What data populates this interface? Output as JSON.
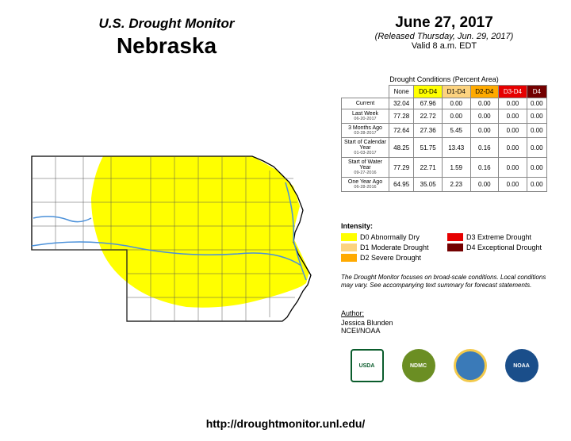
{
  "header": {
    "subtitle": "U.S. Drought Monitor",
    "title": "Nebraska",
    "date": "June 27, 2017",
    "released": "(Released Thursday, Jun. 29, 2017)",
    "valid": "Valid 8 a.m. EDT"
  },
  "table": {
    "caption": "Drought Conditions (Percent Area)",
    "columns": [
      {
        "label": "None",
        "bg": "#ffffff",
        "fg": "#000000"
      },
      {
        "label": "D0-D4",
        "bg": "#ffff00",
        "fg": "#000000"
      },
      {
        "label": "D1-D4",
        "bg": "#fcd37f",
        "fg": "#000000"
      },
      {
        "label": "D2-D4",
        "bg": "#ffaa00",
        "fg": "#000000"
      },
      {
        "label": "D3-D4",
        "bg": "#e60000",
        "fg": "#ffffff"
      },
      {
        "label": "D4",
        "bg": "#730000",
        "fg": "#ffffff"
      }
    ],
    "rows": [
      {
        "label": "Current",
        "date": "",
        "cells": [
          "32.04",
          "67.96",
          "0.00",
          "0.00",
          "0.00",
          "0.00"
        ]
      },
      {
        "label": "Last Week",
        "date": "06-20-2017",
        "cells": [
          "77.28",
          "22.72",
          "0.00",
          "0.00",
          "0.00",
          "0.00"
        ]
      },
      {
        "label": "3 Months Ago",
        "date": "03-28-2017",
        "cells": [
          "72.64",
          "27.36",
          "5.45",
          "0.00",
          "0.00",
          "0.00"
        ]
      },
      {
        "label": "Start of Calendar Year",
        "date": "01-03-2017",
        "cells": [
          "48.25",
          "51.75",
          "13.43",
          "0.16",
          "0.00",
          "0.00"
        ]
      },
      {
        "label": "Start of Water Year",
        "date": "09-27-2016",
        "cells": [
          "77.29",
          "22.71",
          "1.59",
          "0.16",
          "0.00",
          "0.00"
        ]
      },
      {
        "label": "One Year Ago",
        "date": "06-28-2016",
        "cells": [
          "64.95",
          "35.05",
          "2.23",
          "0.00",
          "0.00",
          "0.00"
        ]
      }
    ]
  },
  "intensity": {
    "title": "Intensity:",
    "items": [
      {
        "color": "#ffff00",
        "label": "D0 Abnormally Dry"
      },
      {
        "color": "#e60000",
        "label": "D3 Extreme Drought"
      },
      {
        "color": "#fcd37f",
        "label": "D1 Moderate Drought"
      },
      {
        "color": "#730000",
        "label": "D4 Exceptional Drought"
      },
      {
        "color": "#ffaa00",
        "label": "D2 Severe Drought"
      }
    ]
  },
  "fineprint": "The Drought Monitor focuses on broad-scale conditions. Local conditions may vary. See accompanying text summary for forecast statements.",
  "author": {
    "title": "Author:",
    "name": "Jessica Blunden",
    "org": "NCEI/NOAA"
  },
  "logos": [
    {
      "label": "USDA",
      "bg": "#ffffff",
      "border": "2px solid #0a5c2c",
      "fg": "#0a5c2c",
      "round": false
    },
    {
      "label": "NDMC",
      "bg": "#6b8e23",
      "border": "none",
      "fg": "#ffffff",
      "round": true
    },
    {
      "label": "",
      "bg": "#3a7ab8",
      "border": "3px solid #f2c94c",
      "fg": "#ffffff",
      "round": true
    },
    {
      "label": "NOAA",
      "bg": "#1a4e8a",
      "border": "none",
      "fg": "#ffffff",
      "round": true
    }
  ],
  "url": "http://droughtmonitor.unl.edu/",
  "map": {
    "outline_color": "#000000",
    "outline_width": 1,
    "d0_fill": "#ffff00",
    "river_color": "#4a90d9",
    "river_width": 1.5
  }
}
